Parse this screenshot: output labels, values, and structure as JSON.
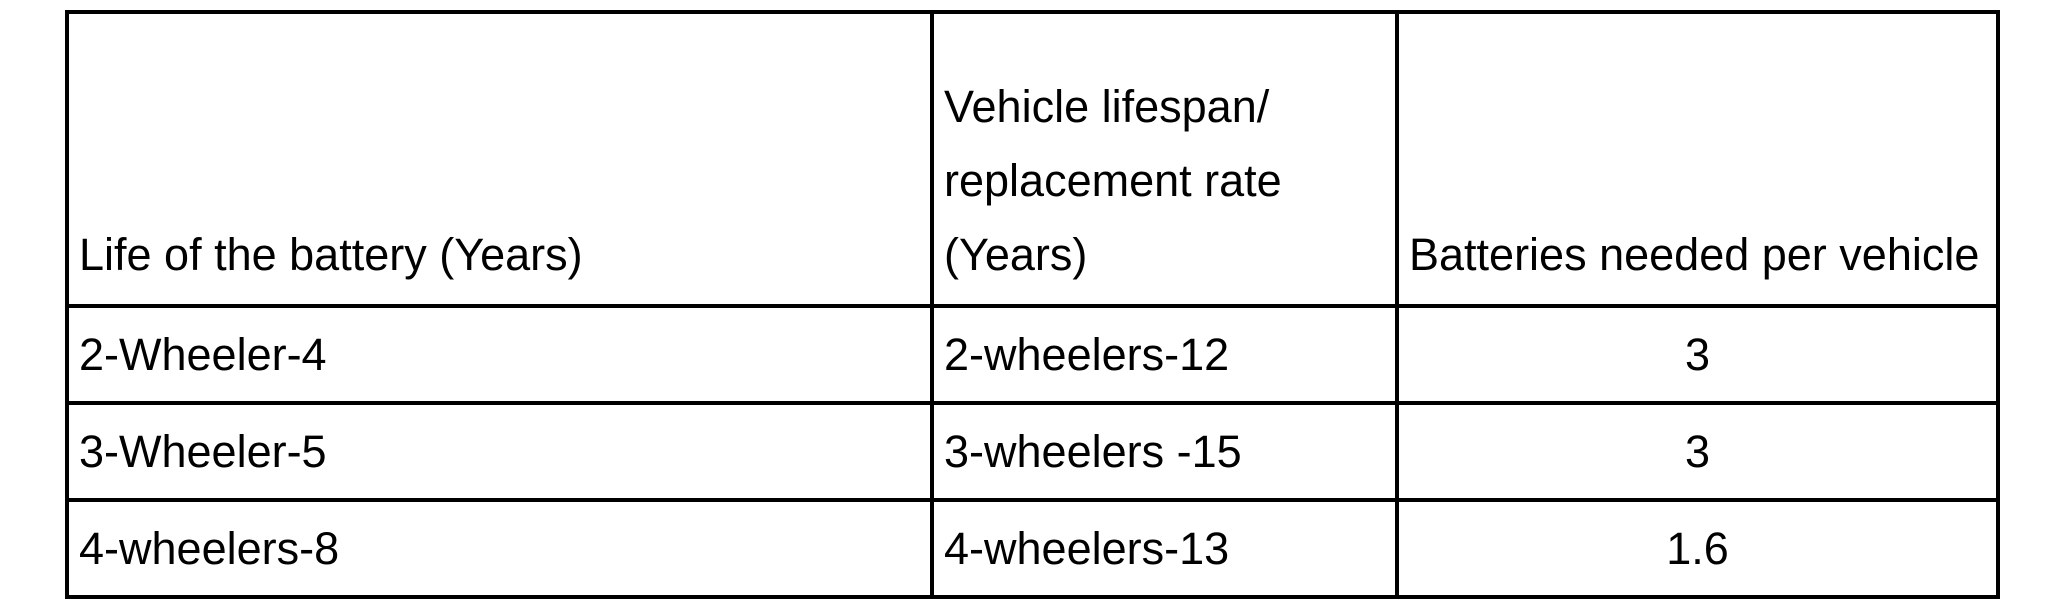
{
  "table": {
    "headers": [
      "Life of the battery (Years)",
      "Vehicle lifespan/ replacement rate (Years)",
      "Batteries needed per vehicle"
    ],
    "rows": [
      [
        "2-Wheeler-4",
        "2-wheelers-12",
        "3"
      ],
      [
        "3-Wheeler-5",
        "3-wheelers -15",
        "3"
      ],
      [
        "4-wheelers-8",
        "4-wheelers-13",
        "1.6"
      ]
    ]
  }
}
